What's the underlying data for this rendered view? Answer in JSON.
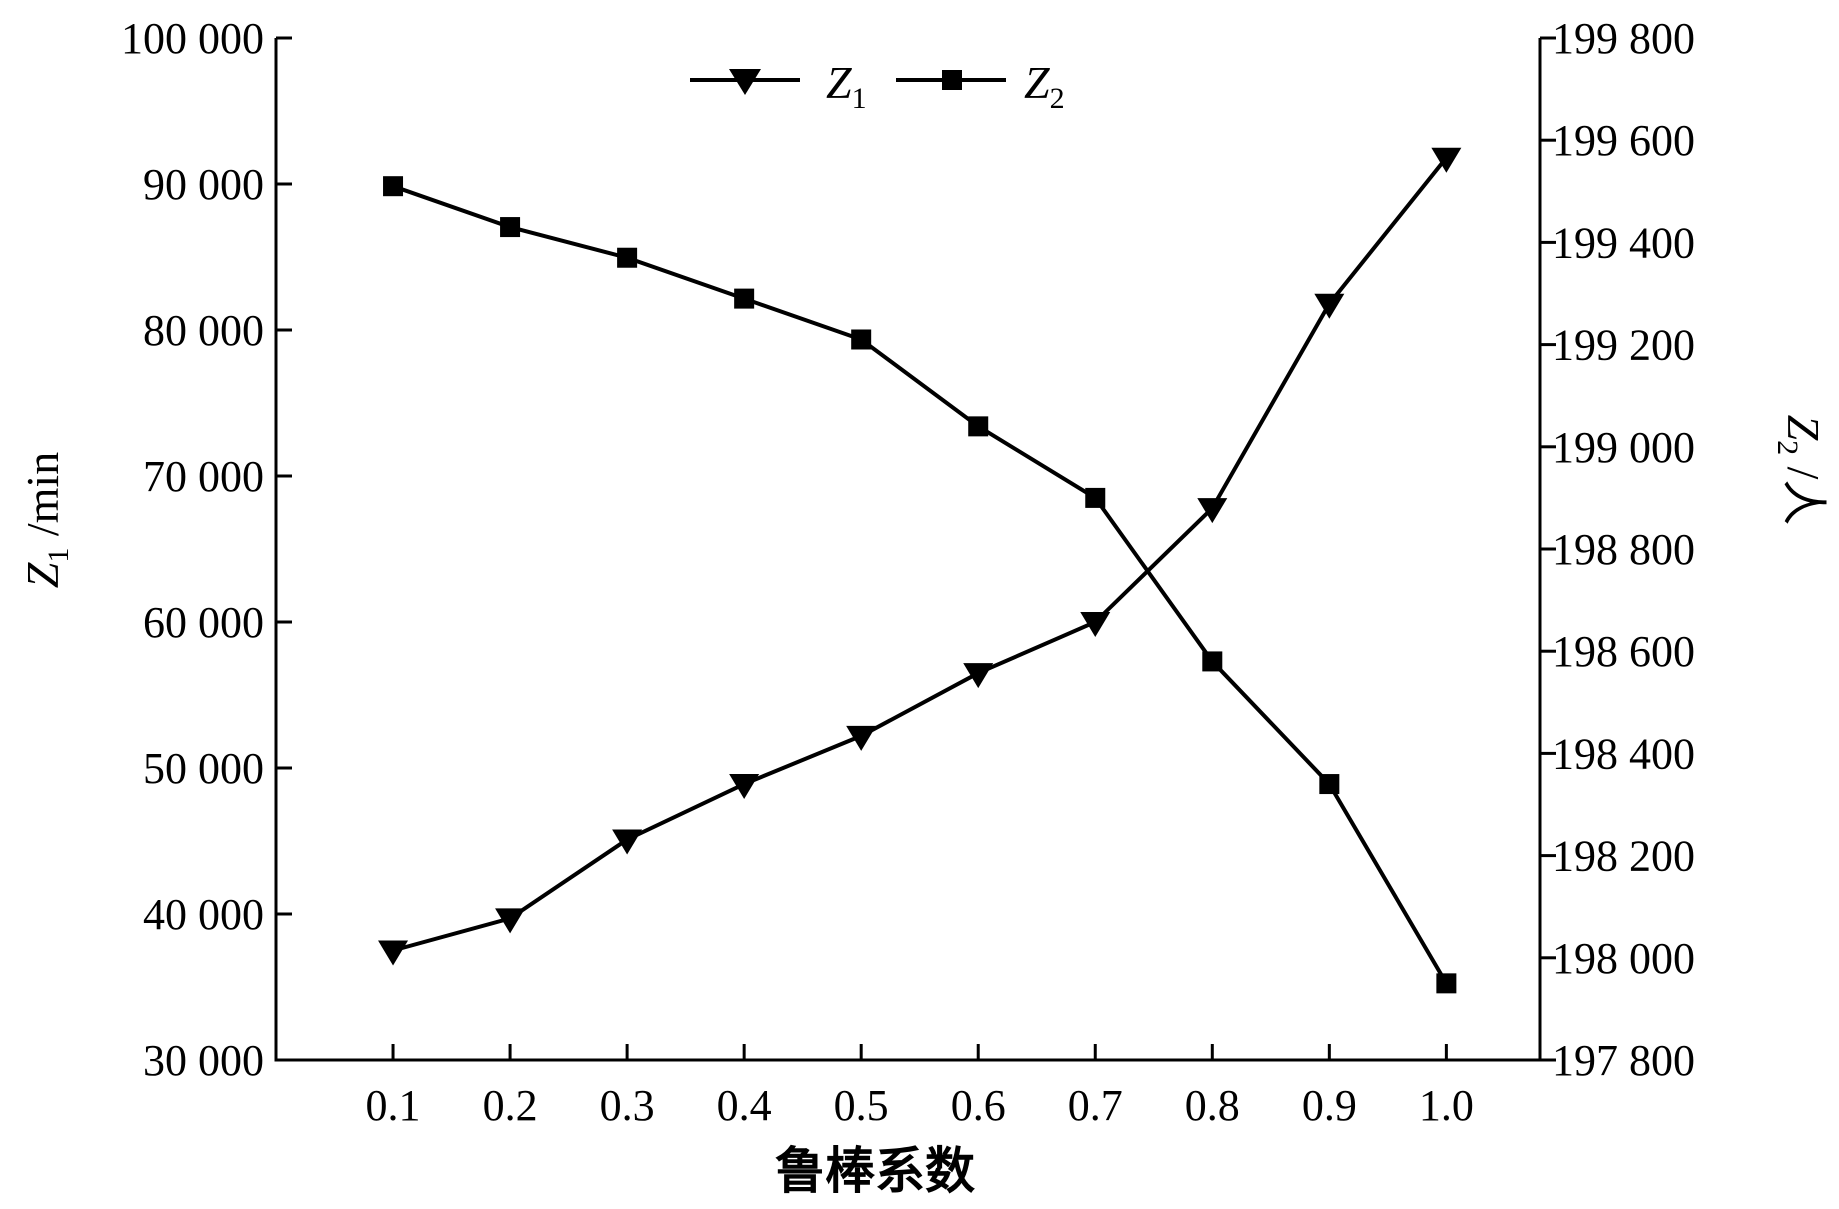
{
  "chart_data": {
    "type": "line",
    "title": "",
    "xlabel": "鲁棒系数",
    "x": [
      0.1,
      0.2,
      0.3,
      0.4,
      0.5,
      0.6,
      0.7,
      0.8,
      0.9,
      1.0
    ],
    "x_tick_labels": [
      "0.1",
      "0.2",
      "0.3",
      "0.4",
      "0.5",
      "0.6",
      "0.7",
      "0.8",
      "0.9",
      "1.0"
    ],
    "xlim": [
      0.0,
      1.08
    ],
    "y_left": {
      "label_var": "Z",
      "label_sub": "1",
      "label_unit": " /min",
      "ylim": [
        30000,
        100000
      ],
      "ticks": [
        30000,
        40000,
        50000,
        60000,
        70000,
        80000,
        90000,
        100000
      ],
      "tick_labels": [
        "30 000",
        "40 000",
        "50 000",
        "60 000",
        "70 000",
        "80 000",
        "90 000",
        "100 000"
      ]
    },
    "y_right": {
      "label_var": "Z",
      "label_sub": "2",
      "label_unit": " /人",
      "ylim": [
        197800,
        199800
      ],
      "ticks": [
        197800,
        198000,
        198200,
        198400,
        198600,
        198800,
        199000,
        199200,
        199400,
        199600,
        199800
      ],
      "tick_labels": [
        "197 800",
        "198 000",
        "198 200",
        "198 400",
        "198 600",
        "198 800",
        "199 000",
        "199 200",
        "199 400",
        "199 600",
        "199 800"
      ]
    },
    "series": [
      {
        "name": "Z1",
        "name_var": "Z",
        "name_sub": "1",
        "axis": "left",
        "marker": "triangle-down",
        "values": [
          37500,
          39700,
          45100,
          48900,
          52200,
          56500,
          60000,
          67800,
          81800,
          91800
        ]
      },
      {
        "name": "Z2",
        "name_var": "Z",
        "name_sub": "2",
        "axis": "right",
        "marker": "square",
        "values": [
          199510,
          199430,
          199370,
          199290,
          199210,
          199040,
          198900,
          198580,
          198340,
          197950
        ]
      }
    ],
    "legend_position": "top-center",
    "grid": false
  },
  "colors": {
    "line": "#000000",
    "background": "#ffffff"
  }
}
